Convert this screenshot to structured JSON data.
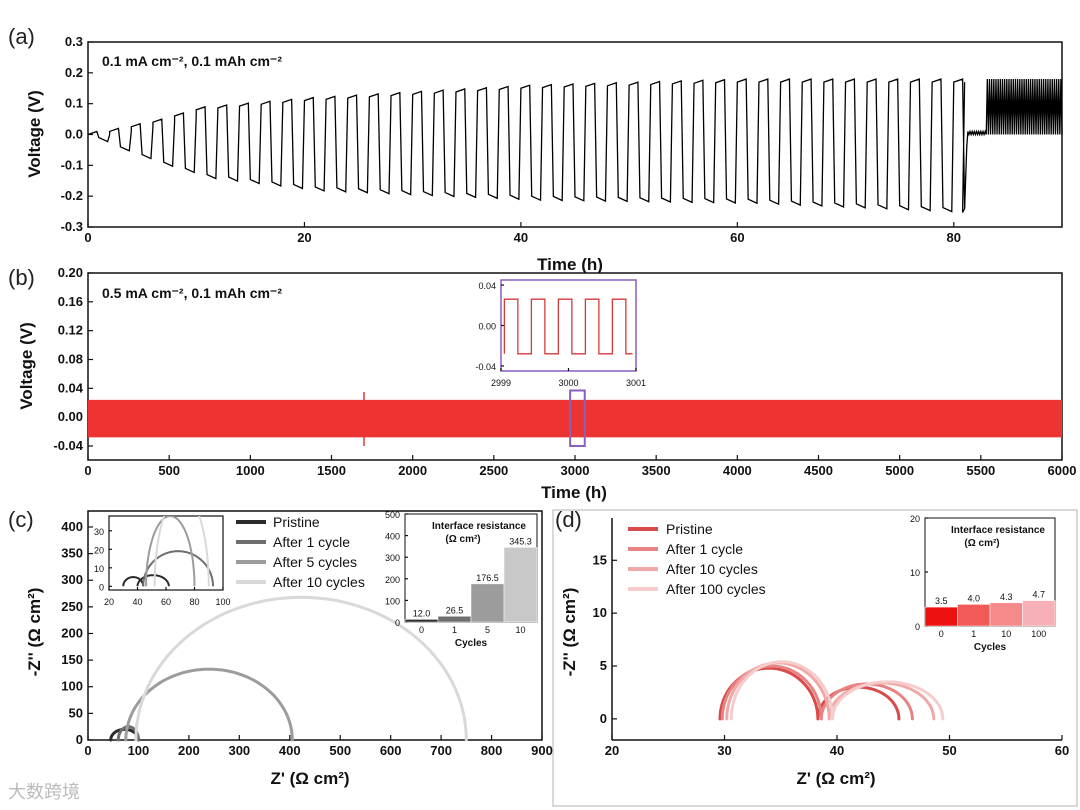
{
  "watermark": "大数跨境",
  "chart_data": [
    {
      "id": "a",
      "panel_label": "(a)",
      "type": "line",
      "annotation": "0.1 mA cm⁻², 0.1 mAh cm⁻²",
      "xlabel": "Time (h)",
      "ylabel": "Voltage (V)",
      "xlim": [
        0,
        90
      ],
      "ylim": [
        -0.3,
        0.3
      ],
      "xticks": [
        0,
        20,
        40,
        60,
        80
      ],
      "yticks": [
        -0.3,
        -0.2,
        -0.1,
        0.0,
        0.1,
        0.2,
        0.3
      ],
      "color": "#000000",
      "series": [
        {
          "values_description": "galvanostatic cycling, 2 h half-cycles; amplitude grows from ~0.01 V to ~0.2 V by 80 h, then drops after ~81 h",
          "cycles": [
            {
              "t_start": 0,
              "upper": 0.0,
              "lower": -0.01
            },
            {
              "t_start": 2,
              "upper": 0.01,
              "lower": -0.04
            },
            {
              "t_start": 6,
              "upper": 0.04,
              "lower": -0.09
            },
            {
              "t_start": 10,
              "upper": 0.08,
              "lower": -0.13
            },
            {
              "t_start": 20,
              "upper": 0.11,
              "lower": -0.17
            },
            {
              "t_start": 40,
              "upper": 0.15,
              "lower": -0.2
            },
            {
              "t_start": 60,
              "upper": 0.17,
              "lower": -0.21
            },
            {
              "t_start": 80,
              "upper": 0.17,
              "lower": -0.24
            },
            {
              "t_start": 82,
              "upper": 0.18,
              "lower": -0.04
            }
          ]
        }
      ]
    },
    {
      "id": "b",
      "panel_label": "(b)",
      "type": "line",
      "annotation": "0.5 mA cm⁻², 0.1 mAh cm⁻²",
      "xlabel": "Time (h)",
      "ylabel": "Voltage (V)",
      "xlim": [
        0,
        6000
      ],
      "ylim": [
        -0.04,
        0.2
      ],
      "xticks": [
        0,
        500,
        1000,
        1500,
        2000,
        2500,
        3000,
        3500,
        4000,
        4500,
        5000,
        5500,
        6000
      ],
      "yticks": [
        -0.04,
        0.0,
        0.04,
        0.08,
        0.12,
        0.16,
        0.2
      ],
      "ytick_labels": [
        "-0.04",
        "0.00",
        "0.04",
        "0.08",
        "0.12",
        "0.16",
        "0.20"
      ],
      "color": "#ee3333",
      "series": [
        {
          "upper": 0.024,
          "lower": -0.028,
          "t_end": 6000
        }
      ],
      "inset": {
        "xlim": [
          2999,
          3001
        ],
        "ylim": [
          -0.045,
          0.045
        ],
        "xticks": [
          2999,
          3000,
          3001
        ],
        "yticks": [
          -0.04,
          0.0,
          0.04
        ],
        "ytick_labels": [
          "-0.04",
          "0.00",
          "0.04"
        ],
        "upper": 0.026,
        "lower": -0.028,
        "period_h": 0.4,
        "frame_color": "#8a5fbf"
      }
    },
    {
      "id": "c",
      "panel_label": "(c)",
      "type": "scatter",
      "xlabel": "Z' (Ω cm²)",
      "ylabel": "-Z'' (Ω cm²)",
      "xlim": [
        0,
        900
      ],
      "ylim": [
        0,
        430
      ],
      "xticks": [
        0,
        100,
        200,
        300,
        400,
        500,
        600,
        700,
        800,
        900
      ],
      "yticks": [
        0,
        50,
        100,
        150,
        200,
        250,
        300,
        350,
        400
      ],
      "series": [
        {
          "name": "Pristine",
          "color": "#2b2b2b",
          "x_start": 45,
          "x_end": 100,
          "peak": 20
        },
        {
          "name": "After 1 cycle",
          "color": "#6e6e6e",
          "x_start": 60,
          "x_end": 100,
          "peak": 25
        },
        {
          "name": "After 5 cycles",
          "color": "#9c9c9c",
          "x_start": 75,
          "x_end": 405,
          "peak": 133
        },
        {
          "name": "After 10 cycles",
          "color": "#d9d9d9",
          "x_start": 95,
          "x_end": 750,
          "peak": 268
        }
      ],
      "inset": {
        "xlim": [
          20,
          100
        ],
        "ylim": [
          -2,
          38
        ],
        "xticks": [
          20,
          40,
          60,
          80,
          100
        ],
        "yticks": [
          0,
          10,
          20,
          30
        ],
        "series": [
          {
            "color": "#2b2b2b",
            "x_start": 30,
            "x_end": 44,
            "peak": 5
          },
          {
            "color": "#2b2b2b",
            "x_start": 40,
            "x_end": 62,
            "peak": 6
          },
          {
            "color": "#6e6e6e",
            "x_start": 44,
            "x_end": 93,
            "peak": 19
          },
          {
            "color": "#9c9c9c",
            "x_start": 46,
            "x_end": 80,
            "peak": 38
          },
          {
            "color": "#d9d9d9",
            "x_start": 52,
            "x_end": 90,
            "peak": 50
          }
        ]
      },
      "bar_inset": {
        "title_line1": "Interface resistance",
        "title_line2": "(Ω cm²)",
        "xlabel": "Cycles",
        "categories": [
          "0",
          "1",
          "5",
          "10"
        ],
        "values": [
          12.0,
          26.5,
          176.5,
          345.3
        ],
        "value_labels": [
          "12.0",
          "26.5",
          "176.5",
          "345.3"
        ],
        "colors": [
          "#2b2b2b",
          "#6e6e6e",
          "#9c9c9c",
          "#c8c8c8"
        ],
        "ylim": [
          0,
          500
        ],
        "yticks": [
          0,
          100,
          200,
          300,
          400,
          500
        ]
      }
    },
    {
      "id": "d",
      "panel_label": "(d)",
      "type": "scatter",
      "xlabel": "Z' (Ω cm²)",
      "ylabel": "-Z'' (Ω cm²)",
      "xlim": [
        20,
        60
      ],
      "ylim": [
        -2,
        19
      ],
      "xticks": [
        20,
        30,
        40,
        50,
        60
      ],
      "yticks": [
        0,
        5,
        10,
        15
      ],
      "series": [
        {
          "name": "Pristine",
          "color": "#d94b4b",
          "arc1": [
            29.6,
            38.3,
            4.8
          ],
          "arc2": [
            38.3,
            45.5,
            3.0
          ]
        },
        {
          "name": "After 1 cycle",
          "color": "#e88383",
          "arc1": [
            29.8,
            38.6,
            5.0
          ],
          "arc2": [
            38.6,
            46.7,
            3.3
          ]
        },
        {
          "name": "After 10 cycles",
          "color": "#f0a8a8",
          "arc1": [
            30.2,
            39.3,
            5.3
          ],
          "arc2": [
            39.3,
            48.6,
            3.4
          ]
        },
        {
          "name": "After 100 cycles",
          "color": "#f6cccc",
          "arc1": [
            30.6,
            39.6,
            5.4
          ],
          "arc2": [
            39.6,
            49.4,
            3.5
          ]
        }
      ],
      "bar_inset": {
        "title_line1": "Interface resistance",
        "title_line2": "(Ω cm²)",
        "xlabel": "Cycles",
        "categories": [
          "0",
          "1",
          "10",
          "100"
        ],
        "values": [
          3.5,
          4.0,
          4.3,
          4.7
        ],
        "value_labels": [
          "3.5",
          "4.0",
          "4.3",
          "4.7"
        ],
        "colors": [
          "#ee1111",
          "#f25a5a",
          "#f58a8a",
          "#f8b0b8"
        ],
        "ylim": [
          0,
          20
        ],
        "yticks": [
          0,
          10,
          20
        ]
      }
    }
  ]
}
